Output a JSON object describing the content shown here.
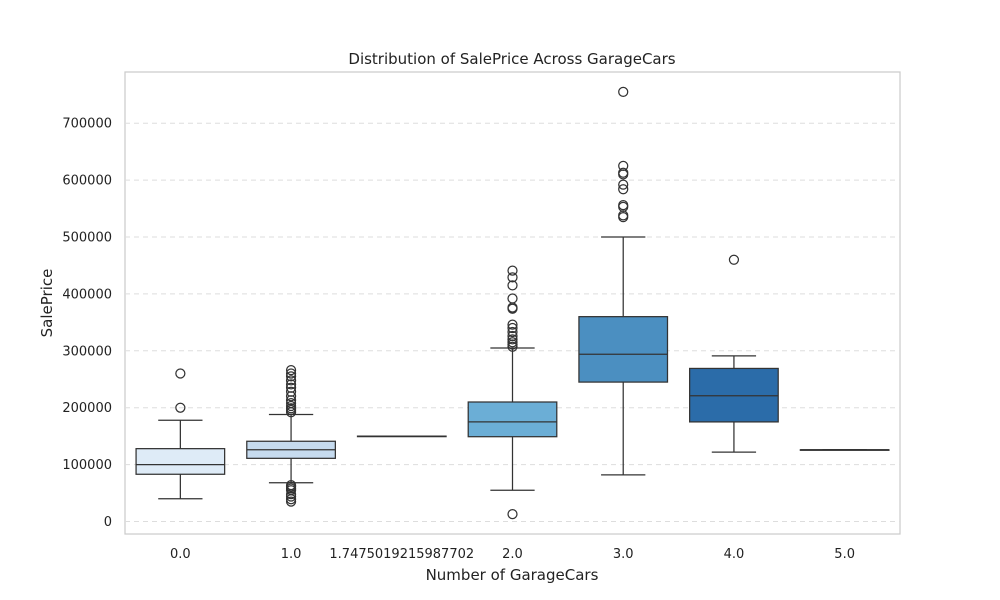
{
  "chart_data": {
    "type": "box",
    "title": "Distribution of SalePrice Across GarageCars",
    "xlabel": "Number of GarageCars",
    "ylabel": "SalePrice",
    "categories": [
      "0.0",
      "1.0",
      "1.7475019215987702",
      "2.0",
      "3.0",
      "4.0",
      "5.0"
    ],
    "ylim": [
      -22000,
      790000
    ],
    "yticks": [
      0,
      100000,
      200000,
      300000,
      400000,
      500000,
      600000,
      700000
    ],
    "grid": true,
    "series": [
      {
        "category": "0.0",
        "color": "#deebf7",
        "whisker_low": 40000,
        "q1": 83000,
        "median": 100000,
        "q3": 128000,
        "whisker_high": 178000,
        "outliers": [
          200000,
          260000
        ]
      },
      {
        "category": "1.0",
        "color": "#c6dbef",
        "whisker_low": 68000,
        "q1": 111000,
        "median": 126000,
        "q3": 141000,
        "whisker_high": 188000,
        "outliers": [
          35000,
          39000,
          44000,
          48000,
          55000,
          58000,
          61000,
          64000,
          192000,
          196000,
          199000,
          203000,
          208000,
          213000,
          220000,
          228000,
          235000,
          241000,
          248000,
          255000,
          260000,
          266000
        ]
      },
      {
        "category": "1.7475019215987702",
        "color": "#c6dbef",
        "whisker_low": 150000,
        "q1": 150000,
        "median": 150000,
        "q3": 150000,
        "whisker_high": 150000,
        "outliers": []
      },
      {
        "category": "2.0",
        "color": "#6baed6",
        "whisker_low": 55000,
        "q1": 149000,
        "median": 175000,
        "q3": 210000,
        "whisker_high": 305000,
        "outliers": [
          13000,
          307000,
          311000,
          315000,
          320000,
          326000,
          333000,
          340000,
          346000,
          374000,
          376000,
          392000,
          415000,
          429000,
          441000
        ]
      },
      {
        "category": "3.0",
        "color": "#4b8fc1",
        "whisker_low": 82000,
        "q1": 245000,
        "median": 294000,
        "q3": 360000,
        "whisker_high": 500000,
        "outliers": [
          535000,
          538000,
          553000,
          556000,
          584000,
          592000,
          610000,
          613000,
          625000,
          755000
        ]
      },
      {
        "category": "4.0",
        "color": "#2b6ca9",
        "whisker_low": 122000,
        "q1": 175000,
        "median": 221000,
        "q3": 269000,
        "whisker_high": 291000,
        "outliers": [
          460000
        ]
      },
      {
        "category": "5.0",
        "color": "#1f5a99",
        "whisker_low": 126000,
        "q1": 126000,
        "median": 126000,
        "q3": 126000,
        "whisker_high": 126000,
        "outliers": []
      }
    ]
  }
}
